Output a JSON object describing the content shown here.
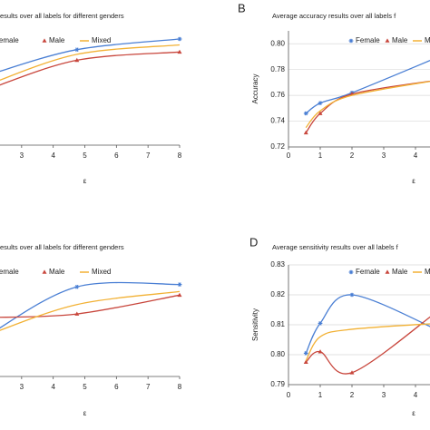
{
  "chart_data": [
    {
      "type": "line",
      "title": "esults over all labels for different genders",
      "xlabel": "ε",
      "x": [
        2,
        4.75,
        8
      ],
      "xlim": [
        2,
        8
      ],
      "xticks": [
        3,
        4,
        5,
        6,
        7,
        8
      ],
      "ylim": [
        0,
        1
      ],
      "series": [
        {
          "name": "Female",
          "color": "#4a7fd4",
          "values": [
            0.6,
            0.81,
            0.9
          ]
        },
        {
          "name": "Male",
          "color": "#c8463c",
          "values": [
            0.48,
            0.72,
            0.79
          ]
        },
        {
          "name": "Mixed",
          "color": "#f2b134",
          "values": [
            0.52,
            0.77,
            0.85
          ]
        }
      ]
    },
    {
      "type": "line",
      "label": "B",
      "title": "Average accuracy results over all labels f",
      "xlabel": "ε",
      "ylabel": "Accuracy",
      "x": [
        0.55,
        1,
        2,
        4.75
      ],
      "xlim": [
        0,
        5
      ],
      "xticks": [
        0,
        1,
        2,
        3,
        4
      ],
      "ylim": [
        0.72,
        0.81
      ],
      "yticks": [
        0.72,
        0.74,
        0.76,
        0.78,
        {
          "value": 0.8,
          "label": "0.80"
        }
      ],
      "grid": true,
      "series": [
        {
          "name": "Female",
          "color": "#4a7fd4",
          "values": [
            0.746,
            0.754,
            0.762,
            0.79
          ]
        },
        {
          "name": "Male",
          "color": "#c8463c",
          "values": [
            0.731,
            0.746,
            0.761,
            0.772
          ]
        },
        {
          "name": "Mixed",
          "color": "#f2b134",
          "values": [
            0.735,
            0.748,
            0.76,
            0.772
          ]
        }
      ]
    },
    {
      "type": "line",
      "title": "esults over all labels for different genders",
      "xlabel": "ε",
      "x": [
        2,
        4.75,
        8
      ],
      "xlim": [
        2,
        8
      ],
      "xticks": [
        3,
        4,
        5,
        6,
        7,
        8
      ],
      "ylim": [
        0,
        1
      ],
      "series": [
        {
          "name": "Female",
          "color": "#4a7fd4",
          "values": [
            0.36,
            0.76,
            0.78
          ]
        },
        {
          "name": "Male",
          "color": "#c8463c",
          "values": [
            0.5,
            0.53,
            0.69
          ]
        },
        {
          "name": "Mixed",
          "color": "#f2b134",
          "values": [
            0.36,
            0.61,
            0.72
          ]
        }
      ]
    },
    {
      "type": "line",
      "label": "D",
      "title": "Average sensitivity results over all labels f",
      "xlabel": "ε",
      "ylabel": "Sensitivity",
      "x": [
        0.55,
        1,
        2,
        4.75
      ],
      "xlim": [
        0,
        5
      ],
      "xticks": [
        0,
        1,
        2,
        3,
        4
      ],
      "ylim": [
        0.79,
        0.83
      ],
      "yticks": [
        0.79,
        {
          "value": 0.8,
          "label": "0.80"
        },
        0.81,
        0.82,
        0.83
      ],
      "grid": true,
      "series": [
        {
          "name": "Female",
          "color": "#4a7fd4",
          "values": [
            0.8005,
            0.8105,
            0.82,
            0.808
          ]
        },
        {
          "name": "Male",
          "color": "#c8463c",
          "values": [
            0.7975,
            0.801,
            0.794,
            0.815
          ]
        },
        {
          "name": "Mixed",
          "color": "#f2b134",
          "values": [
            0.798,
            0.806,
            0.8085,
            0.8105
          ]
        }
      ]
    }
  ]
}
